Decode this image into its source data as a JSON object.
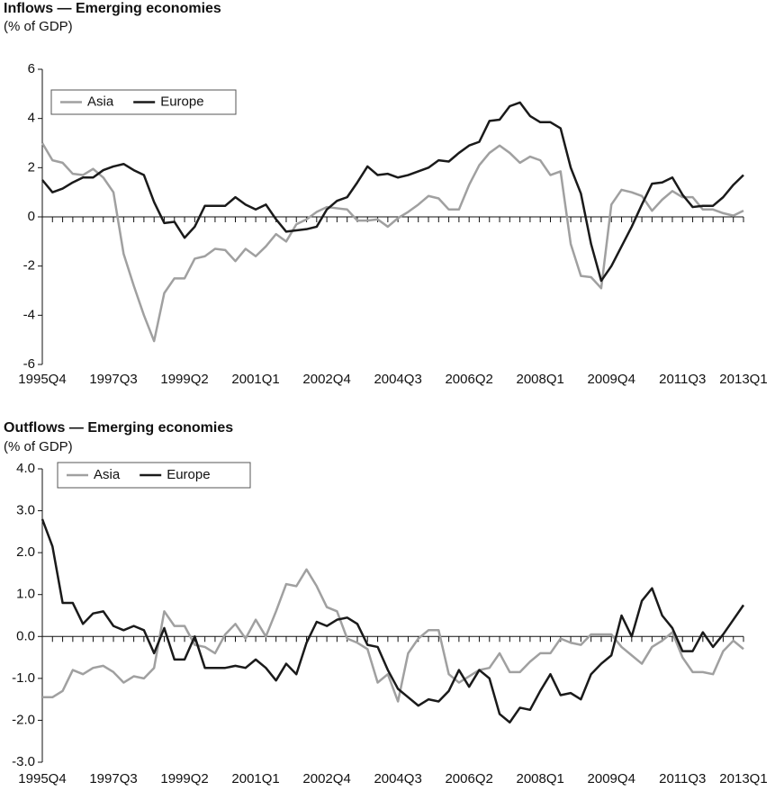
{
  "chart_data": [
    {
      "type": "line",
      "title": "Inflows — Emerging economies",
      "subtitle": "(% of GDP)",
      "categories": [
        "1995Q4",
        null,
        null,
        null,
        null,
        null,
        null,
        "1997Q3",
        null,
        null,
        null,
        null,
        null,
        null,
        "1999Q2",
        null,
        null,
        null,
        null,
        null,
        null,
        "2001Q1",
        null,
        null,
        null,
        null,
        null,
        null,
        "2002Q4",
        null,
        null,
        null,
        null,
        null,
        null,
        "2004Q3",
        null,
        null,
        null,
        null,
        null,
        null,
        "2006Q2",
        null,
        null,
        null,
        null,
        null,
        null,
        "2008Q1",
        null,
        null,
        null,
        null,
        null,
        null,
        "2009Q4",
        null,
        null,
        null,
        null,
        null,
        null,
        "2011Q3",
        null,
        null,
        null,
        null,
        null,
        "2013Q1"
      ],
      "series": [
        {
          "name": "Asia",
          "color": "#a0a0a0",
          "values": [
            3.0,
            2.3,
            2.2,
            1.75,
            1.7,
            1.95,
            1.6,
            1.0,
            -1.5,
            -2.8,
            -4.0,
            -5.05,
            -3.1,
            -2.5,
            -2.5,
            -1.7,
            -1.6,
            -1.3,
            -1.35,
            -1.8,
            -1.3,
            -1.6,
            -1.2,
            -0.7,
            -1.0,
            -0.3,
            -0.1,
            0.2,
            0.4,
            0.35,
            0.3,
            -0.15,
            -0.15,
            -0.1,
            -0.4,
            -0.05,
            0.2,
            0.5,
            0.85,
            0.75,
            0.3,
            0.3,
            1.3,
            2.1,
            2.6,
            2.9,
            2.6,
            2.2,
            2.45,
            2.3,
            1.7,
            1.85,
            -1.1,
            -2.4,
            -2.45,
            -2.9,
            0.5,
            1.1,
            1.0,
            0.85,
            0.25,
            0.7,
            1.05,
            0.8,
            0.8,
            0.3,
            0.3,
            0.15,
            0.05,
            0.25
          ]
        },
        {
          "name": "Europe",
          "color": "#1a1a1a",
          "values": [
            1.5,
            1.0,
            1.15,
            1.4,
            1.6,
            1.6,
            1.9,
            2.05,
            2.15,
            1.9,
            1.7,
            0.6,
            -0.25,
            -0.2,
            -0.85,
            -0.4,
            0.45,
            0.45,
            0.45,
            0.8,
            0.5,
            0.3,
            0.5,
            -0.1,
            -0.6,
            -0.55,
            -0.5,
            -0.4,
            0.3,
            0.65,
            0.8,
            1.4,
            2.05,
            1.7,
            1.75,
            1.6,
            1.7,
            1.85,
            2.0,
            2.3,
            2.25,
            2.6,
            2.9,
            3.05,
            3.9,
            3.95,
            4.5,
            4.65,
            4.1,
            3.85,
            3.85,
            3.6,
            2.0,
            0.95,
            -1.1,
            -2.6,
            -2.0,
            -1.2,
            -0.4,
            0.5,
            1.35,
            1.4,
            1.6,
            0.9,
            0.4,
            0.45,
            0.45,
            0.8,
            1.3,
            1.7
          ]
        }
      ],
      "ylim": [
        -6,
        6
      ],
      "yticks": [
        -6,
        -4,
        -2,
        0,
        2,
        4,
        6
      ],
      "legend": "upper left"
    },
    {
      "type": "line",
      "title": "Outflows — Emerging economies",
      "subtitle": "(% of GDP)",
      "categories": [
        "1995Q4",
        null,
        null,
        null,
        null,
        null,
        null,
        "1997Q3",
        null,
        null,
        null,
        null,
        null,
        null,
        "1999Q2",
        null,
        null,
        null,
        null,
        null,
        null,
        "2001Q1",
        null,
        null,
        null,
        null,
        null,
        null,
        "2002Q4",
        null,
        null,
        null,
        null,
        null,
        null,
        "2004Q3",
        null,
        null,
        null,
        null,
        null,
        null,
        "2006Q2",
        null,
        null,
        null,
        null,
        null,
        null,
        "2008Q1",
        null,
        null,
        null,
        null,
        null,
        null,
        "2009Q4",
        null,
        null,
        null,
        null,
        null,
        null,
        "2011Q3",
        null,
        null,
        null,
        null,
        null,
        "2013Q1"
      ],
      "series": [
        {
          "name": "Asia",
          "color": "#a0a0a0",
          "values": [
            -1.45,
            -1.45,
            -1.3,
            -0.8,
            -0.9,
            -0.75,
            -0.7,
            -0.85,
            -1.1,
            -0.95,
            -1.0,
            -0.75,
            0.6,
            0.25,
            0.25,
            -0.2,
            -0.25,
            -0.4,
            0.05,
            0.3,
            -0.05,
            0.4,
            0.0,
            0.6,
            1.25,
            1.2,
            1.6,
            1.2,
            0.7,
            0.6,
            -0.05,
            -0.15,
            -0.3,
            -1.1,
            -0.9,
            -1.55,
            -0.4,
            -0.05,
            0.15,
            0.15,
            -0.9,
            -1.1,
            -0.95,
            -0.8,
            -0.75,
            -0.4,
            -0.85,
            -0.85,
            -0.6,
            -0.4,
            -0.4,
            -0.05,
            -0.15,
            -0.2,
            0.05,
            0.05,
            0.05,
            -0.25,
            -0.45,
            -0.65,
            -0.25,
            -0.1,
            0.1,
            -0.5,
            -0.85,
            -0.85,
            -0.9,
            -0.35,
            -0.1,
            -0.3
          ]
        },
        {
          "name": "Europe",
          "color": "#1a1a1a",
          "values": [
            2.8,
            2.15,
            0.8,
            0.8,
            0.3,
            0.55,
            0.6,
            0.25,
            0.15,
            0.25,
            0.15,
            -0.4,
            0.2,
            -0.55,
            -0.55,
            0.0,
            -0.75,
            -0.75,
            -0.75,
            -0.7,
            -0.75,
            -0.55,
            -0.75,
            -1.05,
            -0.65,
            -0.9,
            -0.15,
            0.35,
            0.25,
            0.4,
            0.45,
            0.3,
            -0.2,
            -0.25,
            -0.8,
            -1.25,
            -1.45,
            -1.65,
            -1.5,
            -1.55,
            -1.3,
            -0.8,
            -1.2,
            -0.8,
            -1.0,
            -1.85,
            -2.05,
            -1.7,
            -1.75,
            -1.3,
            -0.9,
            -1.4,
            -1.35,
            -1.5,
            -0.9,
            -0.65,
            -0.45,
            0.5,
            0.0,
            0.85,
            1.15,
            0.5,
            0.2,
            -0.35,
            -0.35,
            0.1,
            -0.25,
            0.05,
            0.4,
            0.75
          ]
        }
      ],
      "ylim": [
        -3,
        4
      ],
      "yticks": [
        {
          "value": -3,
          "label": "-3.0"
        },
        {
          "value": -2,
          "label": "-2.0"
        },
        {
          "value": -1,
          "label": "-1.0"
        },
        {
          "value": 0,
          "label": "0.0"
        },
        {
          "value": 1,
          "label": "1.0"
        },
        {
          "value": 2,
          "label": "2.0"
        },
        {
          "value": 3,
          "label": "3.0"
        },
        {
          "value": 4,
          "label": "4.0"
        }
      ],
      "legend": "upper left"
    }
  ]
}
